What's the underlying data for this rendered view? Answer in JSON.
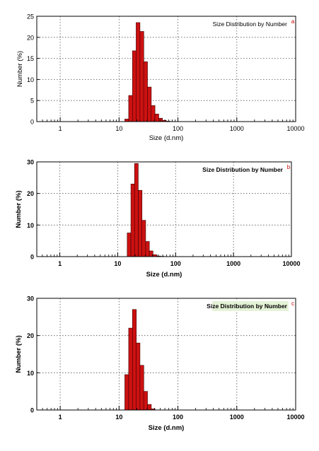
{
  "colors": {
    "bar_fill": "#cc1111",
    "bar_stroke": "#3a0000",
    "panel_letter": "#cc0000",
    "title_highlight": "#e4f2d6"
  },
  "chart_data": [
    {
      "type": "bar",
      "panel_label": "a",
      "title": "Size Distribution by Number",
      "xlabel": "Size (d.nm)",
      "ylabel": "Number (%)",
      "x_scale": "log",
      "xlim": [
        0.4,
        10000
      ],
      "ylim": [
        0,
        25
      ],
      "x_ticks": [
        1,
        10,
        100,
        1000,
        10000
      ],
      "y_ticks": [
        0,
        5,
        10,
        15,
        20,
        25
      ],
      "grid": true,
      "bins_x": [
        13.5,
        15.7,
        18.2,
        21.0,
        24.4,
        28.2,
        32.7,
        37.8,
        43.8,
        50.7,
        58.8,
        68.1
      ],
      "values": [
        0.6,
        6.2,
        16.8,
        23.5,
        21.4,
        14.2,
        8.2,
        3.8,
        1.8,
        0.8,
        0.3,
        0.1
      ]
    },
    {
      "type": "bar",
      "panel_label": "b",
      "title": "Size Distribution by Number",
      "xlabel": "Size (d.nm)",
      "ylabel": "Number (%)",
      "x_scale": "log",
      "xlim": [
        0.4,
        10000
      ],
      "ylim": [
        0,
        30
      ],
      "x_ticks": [
        1,
        10,
        100,
        1000,
        10000
      ],
      "y_ticks": [
        0,
        10,
        20,
        30
      ],
      "grid": true,
      "bins_x": [
        15.7,
        18.2,
        21.0,
        24.4,
        28.2,
        32.7,
        37.8,
        43.8,
        50.7,
        58.8
      ],
      "values": [
        7.5,
        23.0,
        29.5,
        21.0,
        11.5,
        4.8,
        1.8,
        0.6,
        0.2,
        0.1
      ]
    },
    {
      "type": "bar",
      "panel_label": "c",
      "title": "Size Distribution by Number",
      "xlabel": "Size (d.nm)",
      "ylabel": "Number (%)",
      "x_scale": "log",
      "xlim": [
        0.4,
        10000
      ],
      "ylim": [
        0,
        30
      ],
      "x_ticks": [
        1,
        10,
        100,
        1000,
        10000
      ],
      "y_ticks": [
        0,
        10,
        20,
        30
      ],
      "grid": true,
      "bins_x": [
        13.5,
        15.7,
        18.2,
        21.0,
        24.4,
        28.2,
        32.7,
        37.8
      ],
      "values": [
        9.5,
        22.0,
        27.0,
        18.0,
        12.0,
        5.0,
        1.5,
        0.3
      ]
    }
  ]
}
